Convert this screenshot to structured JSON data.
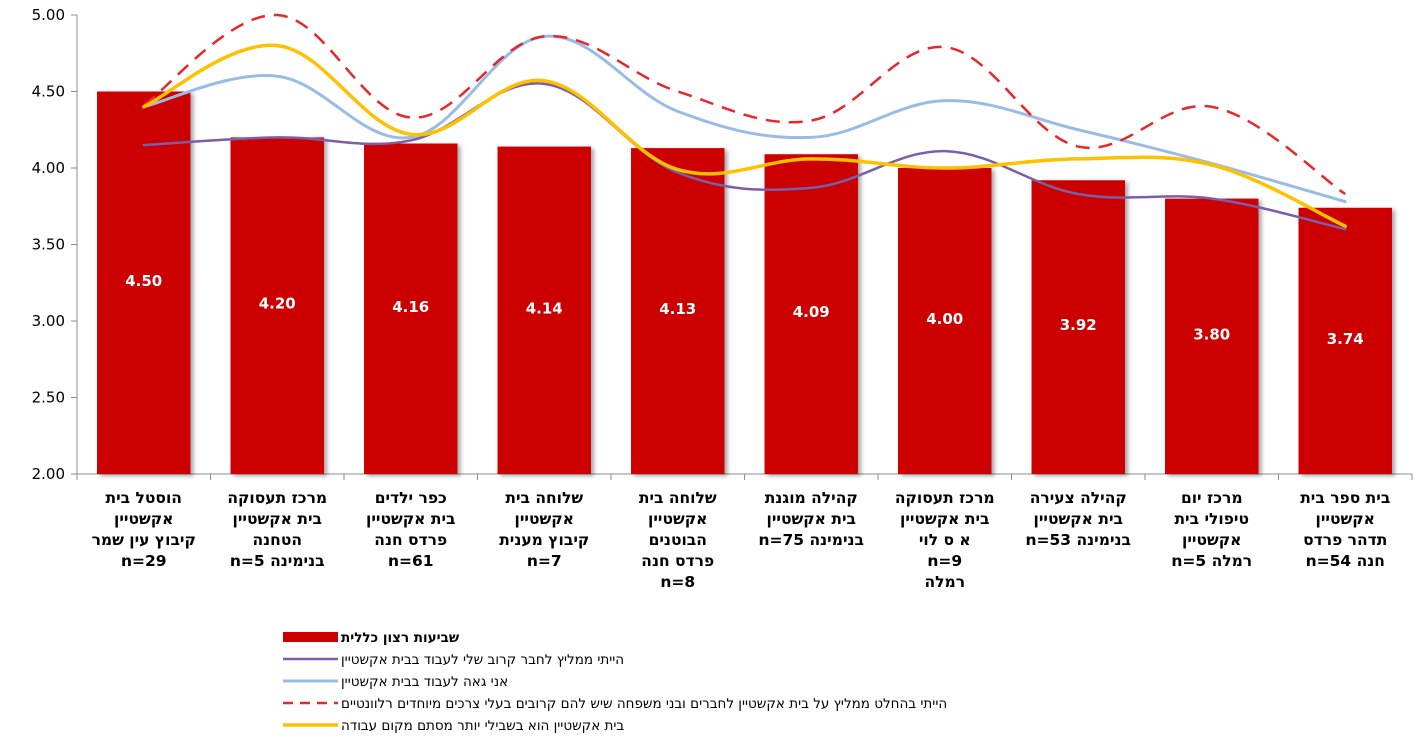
{
  "chart_data": {
    "type": "bar",
    "ylim": [
      2.0,
      5.0
    ],
    "yticks": [
      "2.00",
      "2.50",
      "3.00",
      "3.50",
      "4.00",
      "4.50",
      "5.00"
    ],
    "grid": false,
    "legend_position": "bottom",
    "categories": [
      {
        "lines": [
          "הוסטל בית",
          "אקשטיין",
          "קיבוץ עין שמר",
          "n=29"
        ]
      },
      {
        "lines": [
          "מרכז תעסוקה",
          "בית אקשטיין",
          "הטחנה",
          "n=5   בנימינה"
        ]
      },
      {
        "lines": [
          "כפר ילדים",
          "בית אקשטיין",
          "פרדס חנה",
          "n=61"
        ]
      },
      {
        "lines": [
          "שלוחה בית",
          "אקשטיין",
          "קיבוץ מענית",
          "n=7"
        ]
      },
      {
        "lines": [
          "שלוחה בית",
          "אקשטיין",
          "הבוטנים",
          "פרדס חנה",
          "n=8"
        ]
      },
      {
        "lines": [
          "קהילה מוגנת",
          "בית אקשטיין",
          "n=75  בנימינה"
        ]
      },
      {
        "lines": [
          "מרכז תעסוקה",
          "בית אקשטיין",
          "א ס  לוי",
          "n=9",
          "רמלה"
        ]
      },
      {
        "lines": [
          "קהילה צעירה",
          "בית אקשטיין",
          "n=53  בנימינה"
        ]
      },
      {
        "lines": [
          "מרכז יום",
          "טיפולי בית",
          "אקשטיין",
          "n=5    רמלה"
        ]
      },
      {
        "lines": [
          "בית ספר בית",
          "אקשטיין",
          "תדהר פרדס",
          "n=54   חנה"
        ]
      }
    ],
    "bar_series": {
      "name": "שביעות רצון כללית",
      "color": "#CC0000",
      "values": [
        4.5,
        4.2,
        4.16,
        4.14,
        4.13,
        4.09,
        4.0,
        3.92,
        3.8,
        3.74
      ],
      "labels": [
        "4.50",
        "4.20",
        "4.16",
        "4.14",
        "4.13",
        "4.09",
        "4.00",
        "3.92",
        "3.80",
        "3.74"
      ]
    },
    "line_series": [
      {
        "name": "הייתי ממליץ לחבר קרוב שלי לעבוד בבית אקשטיין",
        "color": "#7B5EA7",
        "dash": false,
        "width": 2.5,
        "values": [
          4.15,
          4.2,
          4.18,
          4.55,
          3.97,
          3.87,
          4.11,
          3.83,
          3.8,
          3.6
        ]
      },
      {
        "name": "אני גאה לעבוד בבית אקשטיין",
        "color": "#99BBE6",
        "dash": false,
        "width": 3,
        "values": [
          4.4,
          4.6,
          4.2,
          4.86,
          4.37,
          4.2,
          4.44,
          4.25,
          4.03,
          3.78
        ]
      },
      {
        "name": "הייתי בהחלט ממליץ על בית אקשטיין לחברים ובני משפחה שיש להם קרובים בעלי צרכים מיוחדים רלוונטיים",
        "color": "#E8262B",
        "dash": true,
        "width": 2.5,
        "values": [
          4.41,
          5.0,
          4.33,
          4.86,
          4.5,
          4.31,
          4.79,
          4.14,
          4.4,
          3.83
        ]
      },
      {
        "name": "בית אקשטיין הוא בשבילי יותר מסתם מקום עבודה",
        "color": "#FFC000",
        "dash": false,
        "width": 3.5,
        "values": [
          4.4,
          4.8,
          4.22,
          4.57,
          3.99,
          4.06,
          4.0,
          4.06,
          4.02,
          3.62
        ]
      }
    ]
  }
}
